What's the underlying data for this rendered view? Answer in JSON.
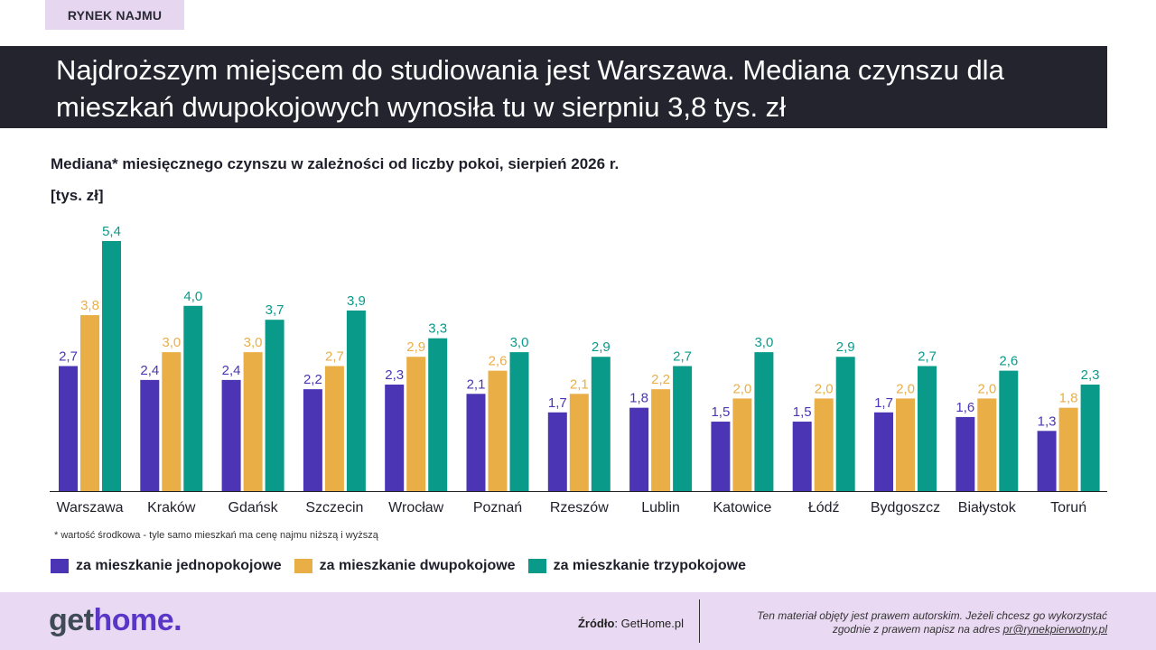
{
  "tag": "RYNEK NAJMU",
  "headline": "Najdroższym miejscem do studiowania jest Warszawa. Mediana czynszu dla mieszkań dwupokojowych wynosiła tu w sierpniu 3,8 tys. zł",
  "footnote": "* wartość środkowa  - tyle samo mieszkań ma cenę najmu niższą i wyższą",
  "footer": {
    "logo_get": "get",
    "logo_home": "home.",
    "source_label": "Źródło",
    "source_value": ": GetHome.pl",
    "copyright_line1": "Ten materiał objęty jest prawem autorskim. Jeżeli chcesz go wykorzystać",
    "copyright_line2": "zgodnie z prawem napisz na adres ",
    "copyright_email": "pr@rynekpierwotny.pl"
  },
  "colors": {
    "series1": "#4b35b5",
    "series2": "#eaae47",
    "series3": "#0a9a8a"
  },
  "chart_data": {
    "type": "bar",
    "title": "Mediana* miesięcznego czynszu w zależności od liczby pokoi, sierpień 2026 r.",
    "unit": "[tys. zł]",
    "categories": [
      "Warszawa",
      "Kraków",
      "Gdańsk",
      "Szczecin",
      "Wrocław",
      "Poznań",
      "Rzeszów",
      "Lublin",
      "Katowice",
      "Łódź",
      "Bydgoszcz",
      "Białystok",
      "Toruń"
    ],
    "series": [
      {
        "name": "za mieszkanie jednopokojowe",
        "values": [
          2.7,
          2.4,
          2.4,
          2.2,
          2.3,
          2.1,
          1.7,
          1.8,
          1.5,
          1.5,
          1.7,
          1.6,
          1.3
        ],
        "labels": [
          "2,7",
          "2,4",
          "2,4",
          "2,2",
          "2,3",
          "2,1",
          "1,7",
          "1,8",
          "1,5",
          "1,5",
          "1,7",
          "1,6",
          "1,3"
        ]
      },
      {
        "name": "za mieszkanie dwupokojowe",
        "values": [
          3.8,
          3.0,
          3.0,
          2.7,
          2.9,
          2.6,
          2.1,
          2.2,
          2.0,
          2.0,
          2.0,
          2.0,
          1.8
        ],
        "labels": [
          "3,8",
          "3,0",
          "3,0",
          "2,7",
          "2,9",
          "2,6",
          "2,1",
          "2,2",
          "2,0",
          "2,0",
          "2,0",
          "2,0",
          "1,8"
        ]
      },
      {
        "name": "za mieszkanie trzypokojowe",
        "values": [
          5.4,
          4.0,
          3.7,
          3.9,
          3.3,
          3.0,
          2.9,
          2.7,
          3.0,
          2.9,
          2.7,
          2.6,
          2.3
        ],
        "labels": [
          "5,4",
          "4,0",
          "3,7",
          "3,9",
          "3,3",
          "3,0",
          "2,9",
          "2,7",
          "3,0",
          "2,9",
          "2,7",
          "2,6",
          "2,3"
        ]
      }
    ],
    "legend_position": "bottom",
    "grid": false
  }
}
